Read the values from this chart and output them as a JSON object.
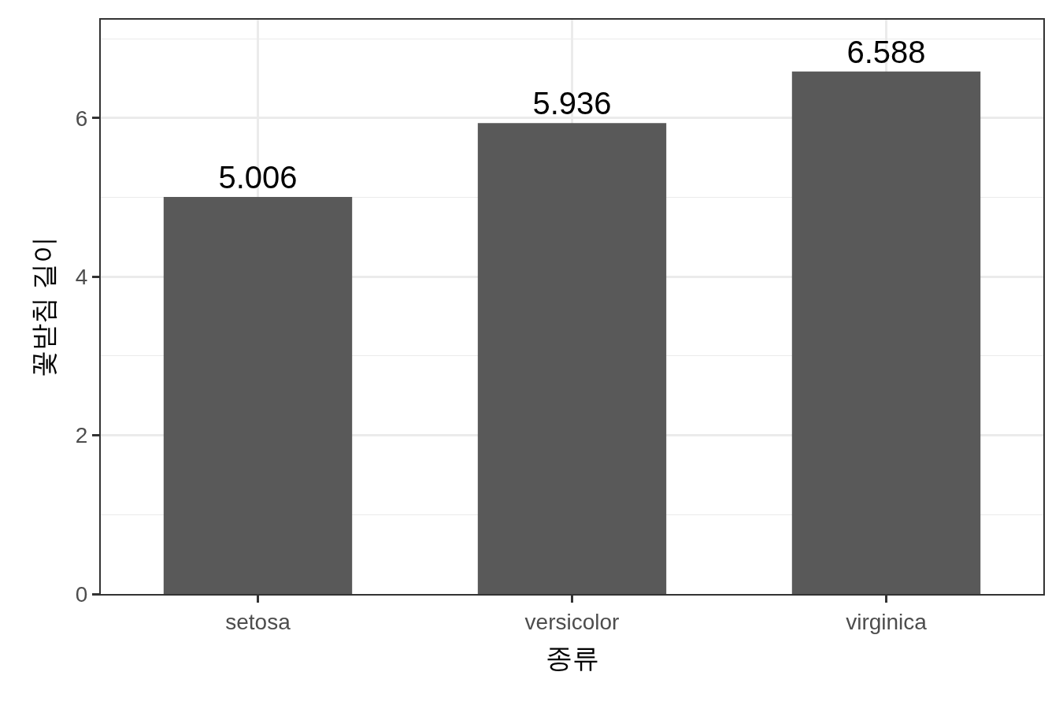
{
  "chart_data": {
    "type": "bar",
    "xlabel": "종류",
    "ylabel": "꽃받침 길이",
    "categories": [
      "setosa",
      "versicolor",
      "virginica"
    ],
    "values": [
      5.006,
      5.936,
      6.588
    ],
    "color": "#595959",
    "ylim": [
      0,
      7.24
    ],
    "yticks": [
      0,
      2,
      4,
      6
    ],
    "grid": true,
    "data_labels": true
  }
}
